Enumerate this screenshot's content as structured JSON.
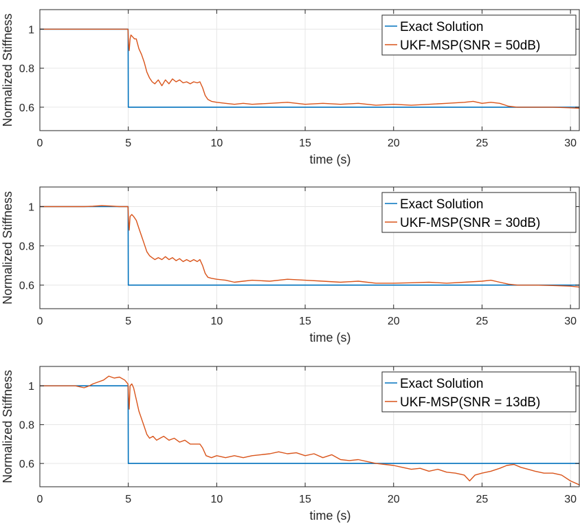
{
  "chart_data": [
    {
      "type": "line",
      "xlabel": "time (s)",
      "ylabel": "Normalized Stiffness",
      "xlim": [
        0,
        30.5
      ],
      "ylim": [
        0.48,
        1.1
      ],
      "xticks": [
        0,
        5,
        10,
        15,
        20,
        25,
        30
      ],
      "yticks": [
        0.6,
        0.8,
        1
      ],
      "ytick_labels": [
        "0.6",
        "0.8",
        "1"
      ],
      "legend_position": "top-right",
      "series": [
        {
          "name": "Exact Solution",
          "color": "#0072BD",
          "x": [
            0,
            4.99,
            5.0,
            30.5
          ],
          "y": [
            1,
            1,
            0.6,
            0.6
          ]
        },
        {
          "name": "UKF-MSP(SNR = 50dB)",
          "color": "#D95319",
          "x": [
            0,
            4.5,
            4.98,
            5.02,
            5.05,
            5.1,
            5.15,
            5.25,
            5.35,
            5.45,
            5.6,
            5.75,
            5.9,
            6.05,
            6.2,
            6.35,
            6.5,
            6.7,
            6.9,
            7.1,
            7.3,
            7.5,
            7.7,
            7.9,
            8.1,
            8.3,
            8.5,
            8.7,
            8.9,
            9.05,
            9.2,
            9.35,
            9.5,
            9.7,
            10.0,
            10.5,
            11,
            11.5,
            12,
            13,
            14,
            15,
            16,
            17,
            18,
            19,
            20,
            21,
            22,
            23,
            24,
            24.5,
            25,
            25.5,
            26,
            26.5,
            27,
            28,
            29,
            30,
            30.5
          ],
          "y": [
            1,
            1,
            1.0,
            0.92,
            0.89,
            0.95,
            0.97,
            0.96,
            0.95,
            0.95,
            0.9,
            0.87,
            0.83,
            0.78,
            0.75,
            0.73,
            0.72,
            0.74,
            0.71,
            0.74,
            0.72,
            0.745,
            0.73,
            0.74,
            0.725,
            0.73,
            0.72,
            0.73,
            0.725,
            0.73,
            0.7,
            0.66,
            0.64,
            0.63,
            0.625,
            0.62,
            0.615,
            0.62,
            0.615,
            0.62,
            0.625,
            0.615,
            0.62,
            0.615,
            0.62,
            0.61,
            0.615,
            0.61,
            0.615,
            0.62,
            0.625,
            0.63,
            0.62,
            0.625,
            0.62,
            0.605,
            0.6,
            0.6,
            0.6,
            0.597,
            0.595
          ]
        }
      ]
    },
    {
      "type": "line",
      "xlabel": "time (s)",
      "ylabel": "Normalized Stiffness",
      "xlim": [
        0,
        30.5
      ],
      "ylim": [
        0.48,
        1.1
      ],
      "xticks": [
        0,
        5,
        10,
        15,
        20,
        25,
        30
      ],
      "yticks": [
        0.6,
        0.8,
        1
      ],
      "ytick_labels": [
        "0.6",
        "0.8",
        "1"
      ],
      "legend_position": "top-right",
      "series": [
        {
          "name": "Exact Solution",
          "color": "#0072BD",
          "x": [
            0,
            4.99,
            5.0,
            30.5
          ],
          "y": [
            1,
            1,
            0.6,
            0.6
          ]
        },
        {
          "name": "UKF-MSP(SNR = 30dB)",
          "color": "#D95319",
          "x": [
            0,
            2.5,
            3.0,
            3.5,
            4.0,
            4.5,
            4.98,
            5.02,
            5.05,
            5.1,
            5.2,
            5.3,
            5.45,
            5.6,
            5.75,
            5.9,
            6.05,
            6.2,
            6.35,
            6.5,
            6.7,
            6.9,
            7.1,
            7.3,
            7.5,
            7.7,
            7.9,
            8.1,
            8.3,
            8.5,
            8.7,
            8.9,
            9.05,
            9.2,
            9.35,
            9.5,
            9.7,
            10.0,
            10.5,
            11,
            11.5,
            12,
            13,
            14,
            15,
            16,
            17,
            18,
            19,
            20,
            21,
            22,
            23,
            24,
            25,
            25.5,
            26,
            26.5,
            27,
            28,
            29,
            30,
            30.5
          ],
          "y": [
            1,
            1,
            1.002,
            1.005,
            1.003,
            1.0,
            1.0,
            0.92,
            0.88,
            0.95,
            0.96,
            0.95,
            0.93,
            0.89,
            0.85,
            0.81,
            0.77,
            0.75,
            0.74,
            0.73,
            0.74,
            0.73,
            0.745,
            0.73,
            0.74,
            0.725,
            0.735,
            0.72,
            0.73,
            0.72,
            0.73,
            0.72,
            0.73,
            0.7,
            0.66,
            0.64,
            0.635,
            0.63,
            0.625,
            0.615,
            0.62,
            0.625,
            0.62,
            0.63,
            0.625,
            0.62,
            0.615,
            0.62,
            0.61,
            0.61,
            0.612,
            0.615,
            0.61,
            0.615,
            0.62,
            0.625,
            0.615,
            0.605,
            0.6,
            0.6,
            0.598,
            0.595,
            0.59
          ]
        }
      ]
    },
    {
      "type": "line",
      "xlabel": "time (s)",
      "ylabel": "Normalized Stiffness",
      "xlim": [
        0,
        30.5
      ],
      "ylim": [
        0.48,
        1.1
      ],
      "xticks": [
        0,
        5,
        10,
        15,
        20,
        25,
        30
      ],
      "yticks": [
        0.6,
        0.8,
        1
      ],
      "ytick_labels": [
        "0.6",
        "0.8",
        "1"
      ],
      "legend_position": "top-right",
      "series": [
        {
          "name": "Exact Solution",
          "color": "#0072BD",
          "x": [
            0,
            4.99,
            5.0,
            30.5
          ],
          "y": [
            1,
            1,
            0.6,
            0.6
          ]
        },
        {
          "name": "UKF-MSP(SNR = 13dB)",
          "color": "#D95319",
          "x": [
            0,
            1.5,
            2.0,
            2.5,
            2.8,
            3.0,
            3.3,
            3.6,
            3.9,
            4.2,
            4.5,
            4.8,
            4.98,
            5.02,
            5.05,
            5.1,
            5.2,
            5.3,
            5.45,
            5.6,
            5.75,
            5.9,
            6.05,
            6.2,
            6.4,
            6.6,
            6.8,
            7.0,
            7.3,
            7.6,
            7.9,
            8.2,
            8.5,
            8.8,
            9.05,
            9.2,
            9.4,
            9.7,
            10.0,
            10.5,
            11,
            11.5,
            12,
            12.5,
            13,
            13.5,
            14,
            14.5,
            15,
            15.5,
            16,
            16.5,
            17,
            17.5,
            18,
            18.5,
            19,
            19.5,
            20,
            20.5,
            21,
            21.5,
            22,
            22.5,
            23,
            23.5,
            24,
            24.3,
            24.6,
            25,
            25.5,
            26,
            26.4,
            26.8,
            27.2,
            27.6,
            28,
            28.5,
            29,
            29.5,
            30,
            30.5
          ],
          "y": [
            1,
            1,
            1.0,
            0.99,
            1.0,
            1.01,
            1.02,
            1.03,
            1.05,
            1.04,
            1.045,
            1.03,
            1.01,
            0.93,
            0.88,
            1.0,
            1.01,
            0.99,
            0.93,
            0.87,
            0.83,
            0.79,
            0.75,
            0.73,
            0.74,
            0.72,
            0.73,
            0.74,
            0.72,
            0.73,
            0.71,
            0.72,
            0.7,
            0.7,
            0.7,
            0.68,
            0.64,
            0.63,
            0.64,
            0.63,
            0.64,
            0.63,
            0.64,
            0.645,
            0.65,
            0.66,
            0.65,
            0.655,
            0.64,
            0.65,
            0.63,
            0.645,
            0.62,
            0.615,
            0.62,
            0.61,
            0.6,
            0.595,
            0.59,
            0.58,
            0.57,
            0.575,
            0.56,
            0.57,
            0.555,
            0.55,
            0.54,
            0.51,
            0.54,
            0.55,
            0.56,
            0.575,
            0.59,
            0.595,
            0.58,
            0.57,
            0.56,
            0.55,
            0.55,
            0.54,
            0.51,
            0.49
          ]
        }
      ]
    }
  ]
}
